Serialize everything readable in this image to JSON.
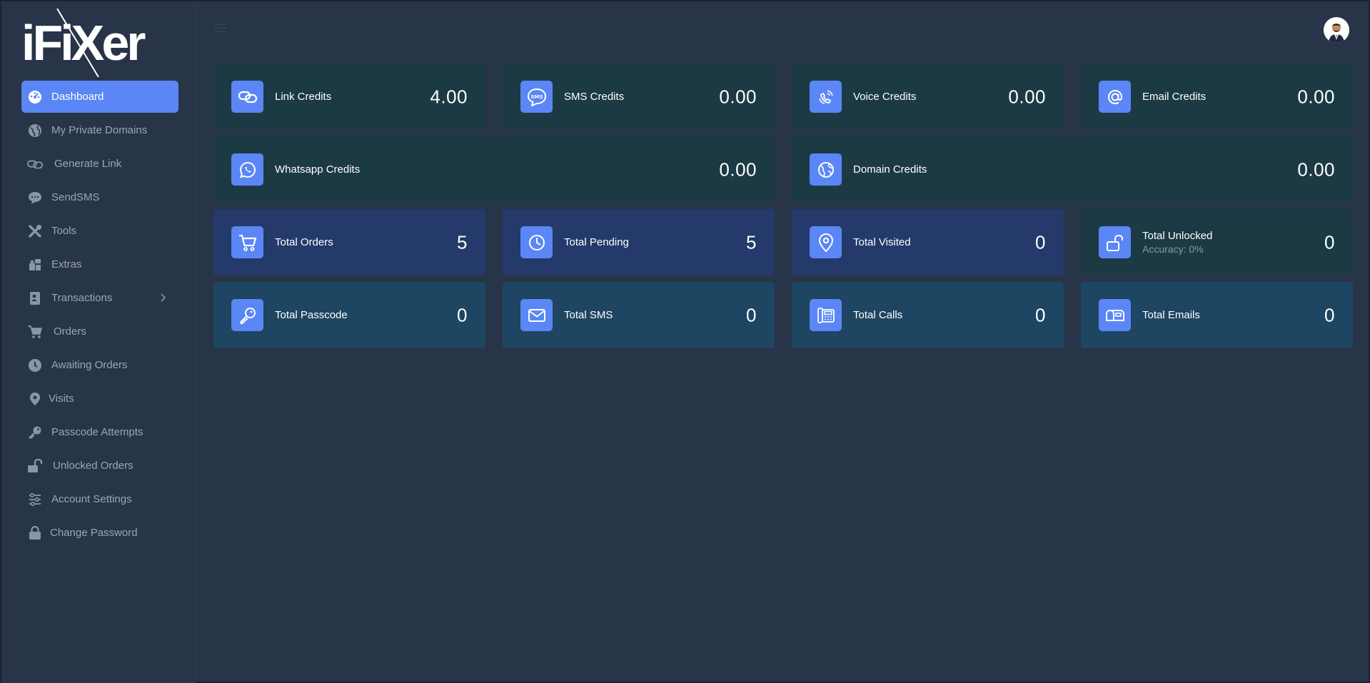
{
  "app": {
    "logo_text": "iFiXer"
  },
  "colors": {
    "accent": "#5b86f5",
    "background": "#283447",
    "teal_card": "#1c3a44",
    "navy_card": "#233a6a",
    "blue_card": "#1e4561"
  },
  "sidebar": {
    "items": [
      {
        "label": "Dashboard",
        "icon": "dashboard-icon",
        "active": true
      },
      {
        "label": "My Private Domains",
        "icon": "globe-icon"
      },
      {
        "label": "Generate Link",
        "icon": "link-icon"
      },
      {
        "label": "SendSMS",
        "icon": "sms-icon"
      },
      {
        "label": "Tools",
        "icon": "tools-icon"
      },
      {
        "label": "Extras",
        "icon": "puzzle-icon"
      },
      {
        "label": "Transactions",
        "icon": "receipt-icon",
        "has_submenu": true
      },
      {
        "label": "Orders",
        "icon": "cart-icon"
      },
      {
        "label": "Awaiting Orders",
        "icon": "clock-icon"
      },
      {
        "label": "Visits",
        "icon": "map-pin-icon"
      },
      {
        "label": "Passcode Attempts",
        "icon": "key-icon"
      },
      {
        "label": "Unlocked Orders",
        "icon": "unlock-icon"
      },
      {
        "label": "Account Settings",
        "icon": "sliders-icon"
      },
      {
        "label": "Change Password",
        "icon": "lock-icon"
      }
    ]
  },
  "cards": {
    "link_credits": {
      "label": "Link Credits",
      "value": "4.00",
      "icon": "link-icon"
    },
    "sms_credits": {
      "label": "SMS Credits",
      "value": "0.00",
      "icon": "sms-icon"
    },
    "voice_credits": {
      "label": "Voice Credits",
      "value": "0.00",
      "icon": "phone-ringing-icon"
    },
    "email_credits": {
      "label": "Email Credits",
      "value": "0.00",
      "icon": "at-icon"
    },
    "whatsapp_credits": {
      "label": "Whatsapp Credits",
      "value": "0.00",
      "icon": "whatsapp-icon"
    },
    "domain_credits": {
      "label": "Domain Credits",
      "value": "0.00",
      "icon": "globe-icon"
    },
    "total_orders": {
      "label": "Total Orders",
      "value": "5",
      "icon": "cart-icon"
    },
    "total_pending": {
      "label": "Total Pending",
      "value": "5",
      "icon": "clock-icon"
    },
    "total_visited": {
      "label": "Total Visited",
      "value": "0",
      "icon": "map-pin-icon"
    },
    "total_unlocked": {
      "label": "Total Unlocked",
      "sub": "Accuracy: 0%",
      "value": "0",
      "icon": "unlock-icon"
    },
    "total_passcode": {
      "label": "Total Passcode",
      "value": "0",
      "icon": "key-icon"
    },
    "total_sms": {
      "label": "Total SMS",
      "value": "0",
      "icon": "envelope-icon"
    },
    "total_calls": {
      "label": "Total Calls",
      "value": "0",
      "icon": "telephone-icon"
    },
    "total_emails": {
      "label": "Total Emails",
      "value": "0",
      "icon": "mailbox-icon"
    }
  }
}
